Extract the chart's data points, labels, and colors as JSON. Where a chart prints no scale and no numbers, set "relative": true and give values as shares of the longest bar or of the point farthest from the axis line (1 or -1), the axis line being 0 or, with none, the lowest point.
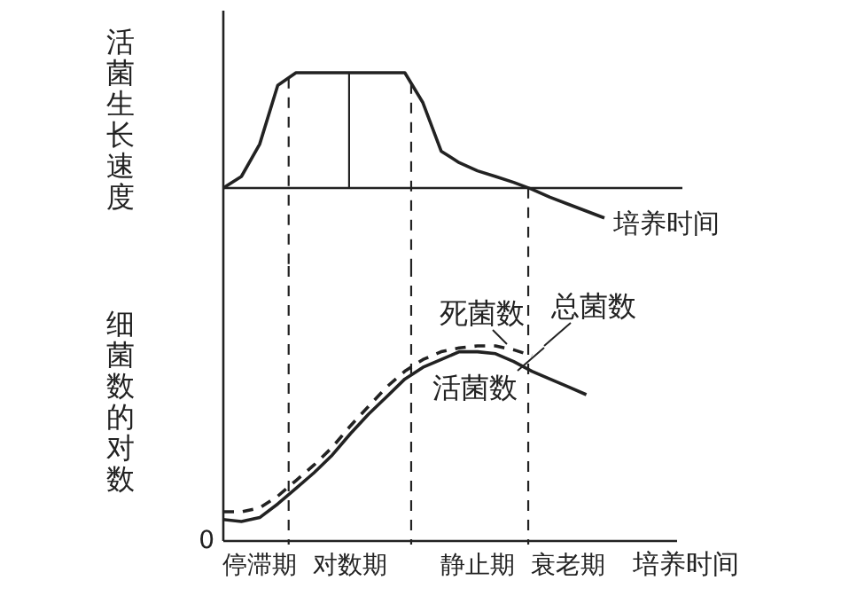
{
  "chart_data": [
    {
      "type": "line",
      "relative": true,
      "ylabel": "活菌生长速度",
      "xlabel": "培养时间",
      "tick_labels": false,
      "marker": "none",
      "categories": [
        null,
        null,
        null,
        null,
        null,
        null,
        null,
        null,
        null,
        null,
        null,
        null,
        null,
        null,
        null,
        null,
        null,
        null,
        null,
        null,
        null,
        null,
        null,
        null,
        null,
        null
      ],
      "series": [
        {
          "color": "#222222",
          "line_style": "solid",
          "values": [
            0,
            0.1,
            0.38,
            0.89,
            1,
            1,
            1,
            1,
            1,
            1,
            1,
            0.74,
            0.32,
            0.22,
            0.15,
            0.1,
            0.05,
            -0.01,
            -0.08,
            -0.14,
            -0.2,
            -0.26,
            null,
            null,
            null,
            null
          ]
        }
      ]
    },
    {
      "type": "line",
      "relative": true,
      "ylabel": "细菌数的对数",
      "xlabel": "培养时间",
      "tick_labels": "x",
      "marker": "none",
      "categories": [
        null,
        null,
        "停滞期",
        null,
        null,
        null,
        null,
        "对数期",
        null,
        null,
        null,
        null,
        null,
        null,
        "静止期",
        null,
        null,
        null,
        null,
        "衰老期",
        null,
        null,
        null,
        null,
        null,
        null
      ],
      "series": [
        {
          "name": "活菌数",
          "color": "#222222",
          "line_style": "solid",
          "values": [
            0.11,
            0.1,
            0.12,
            0.19,
            0.27,
            0.35,
            0.44,
            0.55,
            0.65,
            0.74,
            0.83,
            0.89,
            0.93,
            0.97,
            0.97,
            0.96,
            0.92,
            0.87,
            0.83,
            0.79,
            0.75,
            null,
            null,
            null,
            null,
            null
          ]
        },
        {
          "name": "总菌数",
          "color": "#222222",
          "line_style": "dashed",
          "values": [
            0.15,
            0.15,
            0.17,
            0.23,
            0.31,
            0.39,
            0.48,
            0.59,
            0.69,
            0.79,
            0.87,
            0.93,
            0.97,
            0.99,
            1,
            1,
            0.98,
            0.95,
            null,
            null,
            null,
            null,
            null,
            null,
            null,
            null
          ]
        }
      ],
      "annotations": [
        "0",
        "死菌数"
      ]
    }
  ]
}
